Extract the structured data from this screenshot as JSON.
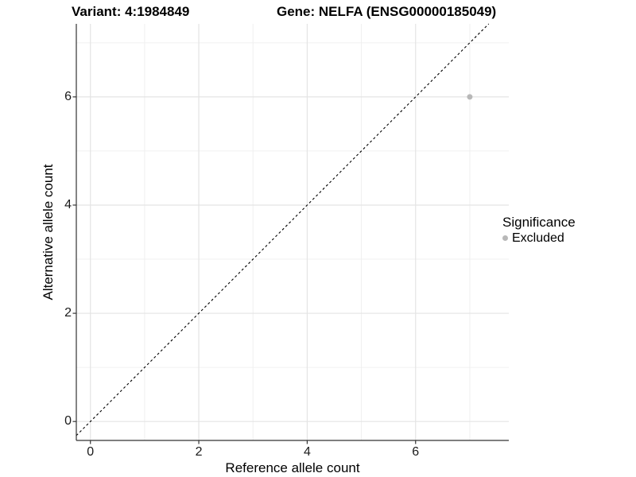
{
  "titles": {
    "variant": "Variant: 4:1984849",
    "gene": "Gene: NELFA (ENSG00000185049)"
  },
  "legend": {
    "title": "Significance",
    "items": [
      {
        "label": "Excluded",
        "color": "#b8b8b8"
      }
    ]
  },
  "colors": {
    "background": "#ffffff",
    "grid_major": "#e4e4e4",
    "grid_minor": "#f0f0f0",
    "axis_line": "#333333",
    "tick_mark": "#333333",
    "reference_line": "#000000",
    "point": "#b8b8b8",
    "text": "#000000"
  },
  "chart_data": {
    "type": "scatter",
    "title": "Variant: 4:1984849 — Gene: NELFA (ENSG00000185049)",
    "xlabel": "Reference allele count",
    "ylabel": "Alternative allele count",
    "xlim": [
      -0.26,
      7.72
    ],
    "ylim": [
      -0.35,
      7.35
    ],
    "x_ticks": [
      0,
      2,
      4,
      6
    ],
    "y_ticks": [
      0,
      2,
      4,
      6
    ],
    "x_minor_ticks": [
      1,
      3,
      5,
      7
    ],
    "y_minor_ticks": [
      1,
      3,
      5,
      7
    ],
    "grid": true,
    "legend_position": "right",
    "series": [
      {
        "name": "Excluded",
        "color": "#b8b8b8",
        "points": [
          {
            "x": 7,
            "y": 6
          }
        ]
      }
    ],
    "reference_line": {
      "kind": "identity_y_equals_x",
      "style": "dashed",
      "color": "#000000"
    }
  }
}
